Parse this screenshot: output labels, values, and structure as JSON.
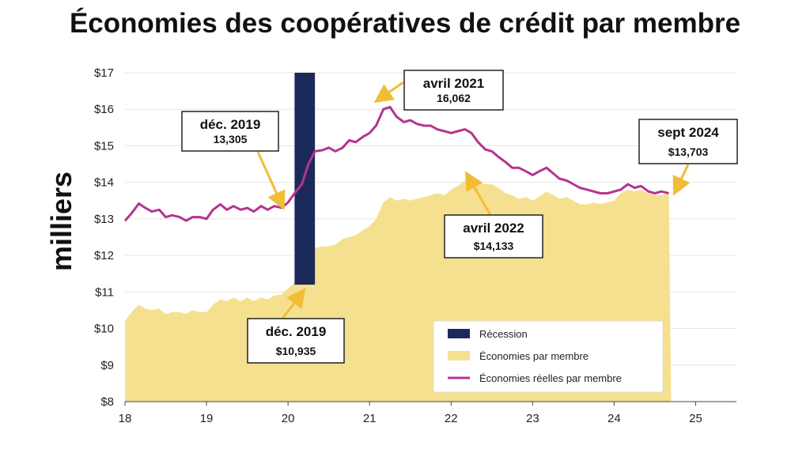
{
  "colors": {
    "area": "#f5e08f",
    "line": "#b5348f",
    "recession": "#1c2a5a",
    "arrow": "#f0bd35",
    "grid": "#e6e6e6"
  },
  "chart_data": {
    "type": "area",
    "title": "Économies des coopératives de crédit par membre",
    "ylabel": "milliers",
    "xlabel": "",
    "xlim": [
      18,
      25.5
    ],
    "ylim": [
      8,
      17
    ],
    "x_ticks": [
      18,
      19,
      20,
      21,
      22,
      23,
      24,
      25
    ],
    "x_tick_labels": [
      "18",
      "19",
      "20",
      "21",
      "22",
      "23",
      "24",
      "25"
    ],
    "y_ticks": [
      8,
      9,
      10,
      11,
      12,
      13,
      14,
      15,
      16,
      17
    ],
    "y_tick_labels": [
      "$8",
      "$9",
      "$10",
      "$11",
      "$12",
      "$13",
      "$14",
      "$15",
      "$16",
      "$17"
    ],
    "grid": true,
    "legend_position": "bottom-right",
    "recession": {
      "name": "Récession",
      "x_start": 20.08,
      "x_end": 20.33
    },
    "series": [
      {
        "name": "Économies par membre",
        "type": "area",
        "points": [
          [
            18.0,
            10.2
          ],
          [
            18.08,
            10.45
          ],
          [
            18.17,
            10.65
          ],
          [
            18.25,
            10.55
          ],
          [
            18.33,
            10.5
          ],
          [
            18.42,
            10.55
          ],
          [
            18.5,
            10.4
          ],
          [
            18.58,
            10.45
          ],
          [
            18.67,
            10.45
          ],
          [
            18.75,
            10.4
          ],
          [
            18.83,
            10.5
          ],
          [
            18.92,
            10.45
          ],
          [
            19.0,
            10.45
          ],
          [
            19.08,
            10.65
          ],
          [
            19.17,
            10.8
          ],
          [
            19.25,
            10.75
          ],
          [
            19.33,
            10.85
          ],
          [
            19.42,
            10.75
          ],
          [
            19.5,
            10.85
          ],
          [
            19.58,
            10.75
          ],
          [
            19.67,
            10.85
          ],
          [
            19.75,
            10.8
          ],
          [
            19.83,
            10.9
          ],
          [
            19.92,
            10.935
          ],
          [
            20.0,
            11.1
          ],
          [
            20.08,
            11.25
          ],
          [
            20.17,
            11.3
          ],
          [
            20.25,
            11.9
          ],
          [
            20.33,
            12.2
          ],
          [
            20.42,
            12.25
          ],
          [
            20.5,
            12.25
          ],
          [
            20.58,
            12.3
          ],
          [
            20.67,
            12.45
          ],
          [
            20.75,
            12.5
          ],
          [
            20.83,
            12.55
          ],
          [
            20.92,
            12.7
          ],
          [
            21.0,
            12.8
          ],
          [
            21.08,
            13.0
          ],
          [
            21.17,
            13.45
          ],
          [
            21.25,
            13.6
          ],
          [
            21.33,
            13.5
          ],
          [
            21.42,
            13.55
          ],
          [
            21.5,
            13.5
          ],
          [
            21.58,
            13.55
          ],
          [
            21.67,
            13.6
          ],
          [
            21.75,
            13.65
          ],
          [
            21.83,
            13.7
          ],
          [
            21.92,
            13.65
          ],
          [
            22.0,
            13.8
          ],
          [
            22.08,
            13.9
          ],
          [
            22.17,
            14.05
          ],
          [
            22.25,
            14.133
          ],
          [
            22.33,
            14.0
          ],
          [
            22.42,
            13.95
          ],
          [
            22.5,
            13.95
          ],
          [
            22.58,
            13.85
          ],
          [
            22.67,
            13.7
          ],
          [
            22.75,
            13.65
          ],
          [
            22.83,
            13.55
          ],
          [
            22.92,
            13.6
          ],
          [
            23.0,
            13.5
          ],
          [
            23.08,
            13.6
          ],
          [
            23.17,
            13.75
          ],
          [
            23.25,
            13.65
          ],
          [
            23.33,
            13.55
          ],
          [
            23.42,
            13.6
          ],
          [
            23.5,
            13.5
          ],
          [
            23.58,
            13.4
          ],
          [
            23.67,
            13.4
          ],
          [
            23.75,
            13.45
          ],
          [
            23.83,
            13.4
          ],
          [
            23.92,
            13.45
          ],
          [
            24.0,
            13.5
          ],
          [
            24.08,
            13.7
          ],
          [
            24.17,
            13.8
          ],
          [
            24.25,
            13.75
          ],
          [
            24.33,
            13.8
          ],
          [
            24.42,
            13.7
          ],
          [
            24.5,
            13.65
          ],
          [
            24.58,
            13.65
          ],
          [
            24.67,
            13.703
          ]
        ]
      },
      {
        "name": "Économies réelles par membre",
        "type": "line",
        "points": [
          [
            18.0,
            12.95
          ],
          [
            18.08,
            13.15
          ],
          [
            18.17,
            13.42
          ],
          [
            18.25,
            13.3
          ],
          [
            18.33,
            13.2
          ],
          [
            18.42,
            13.25
          ],
          [
            18.5,
            13.05
          ],
          [
            18.58,
            13.1
          ],
          [
            18.67,
            13.05
          ],
          [
            18.75,
            12.95
          ],
          [
            18.83,
            13.05
          ],
          [
            18.92,
            13.05
          ],
          [
            19.0,
            13.0
          ],
          [
            19.08,
            13.25
          ],
          [
            19.17,
            13.4
          ],
          [
            19.25,
            13.25
          ],
          [
            19.33,
            13.35
          ],
          [
            19.42,
            13.25
          ],
          [
            19.5,
            13.3
          ],
          [
            19.58,
            13.2
          ],
          [
            19.67,
            13.35
          ],
          [
            19.75,
            13.25
          ],
          [
            19.83,
            13.35
          ],
          [
            19.92,
            13.305
          ],
          [
            20.0,
            13.45
          ],
          [
            20.08,
            13.7
          ],
          [
            20.17,
            13.95
          ],
          [
            20.25,
            14.5
          ],
          [
            20.33,
            14.85
          ],
          [
            20.42,
            14.88
          ],
          [
            20.5,
            14.95
          ],
          [
            20.58,
            14.85
          ],
          [
            20.67,
            14.95
          ],
          [
            20.75,
            15.15
          ],
          [
            20.83,
            15.1
          ],
          [
            20.92,
            15.25
          ],
          [
            21.0,
            15.35
          ],
          [
            21.08,
            15.55
          ],
          [
            21.17,
            16.0
          ],
          [
            21.25,
            16.062
          ],
          [
            21.33,
            15.8
          ],
          [
            21.42,
            15.65
          ],
          [
            21.5,
            15.7
          ],
          [
            21.58,
            15.6
          ],
          [
            21.67,
            15.55
          ],
          [
            21.75,
            15.55
          ],
          [
            21.83,
            15.45
          ],
          [
            21.92,
            15.4
          ],
          [
            22.0,
            15.35
          ],
          [
            22.08,
            15.4
          ],
          [
            22.17,
            15.45
          ],
          [
            22.25,
            15.35
          ],
          [
            22.33,
            15.1
          ],
          [
            22.42,
            14.9
          ],
          [
            22.5,
            14.85
          ],
          [
            22.58,
            14.7
          ],
          [
            22.67,
            14.55
          ],
          [
            22.75,
            14.4
          ],
          [
            22.83,
            14.4
          ],
          [
            22.92,
            14.3
          ],
          [
            23.0,
            14.2
          ],
          [
            23.08,
            14.3
          ],
          [
            23.17,
            14.4
          ],
          [
            23.25,
            14.25
          ],
          [
            23.33,
            14.1
          ],
          [
            23.42,
            14.05
          ],
          [
            23.5,
            13.95
          ],
          [
            23.58,
            13.85
          ],
          [
            23.67,
            13.8
          ],
          [
            23.75,
            13.75
          ],
          [
            23.83,
            13.7
          ],
          [
            23.92,
            13.7
          ],
          [
            24.0,
            13.75
          ],
          [
            24.08,
            13.8
          ],
          [
            24.17,
            13.95
          ],
          [
            24.25,
            13.85
          ],
          [
            24.33,
            13.9
          ],
          [
            24.42,
            13.75
          ],
          [
            24.5,
            13.7
          ],
          [
            24.58,
            13.75
          ],
          [
            24.67,
            13.703
          ]
        ]
      }
    ],
    "annotations": [
      {
        "title": "déc. 2019",
        "value": "13,305",
        "target": [
          19.93,
          13.35
        ]
      },
      {
        "title": "avril 2021",
        "value": "16,062",
        "target": [
          21.1,
          16.25
        ]
      },
      {
        "title": "sept 2024",
        "value": "$13,703",
        "target": [
          24.75,
          13.75
        ]
      },
      {
        "title": "avril 2022",
        "value": "$14,133",
        "target": [
          22.2,
          14.2
        ]
      },
      {
        "title": "déc. 2019",
        "value": "$10,935",
        "target": [
          20.18,
          11.0
        ]
      }
    ]
  }
}
